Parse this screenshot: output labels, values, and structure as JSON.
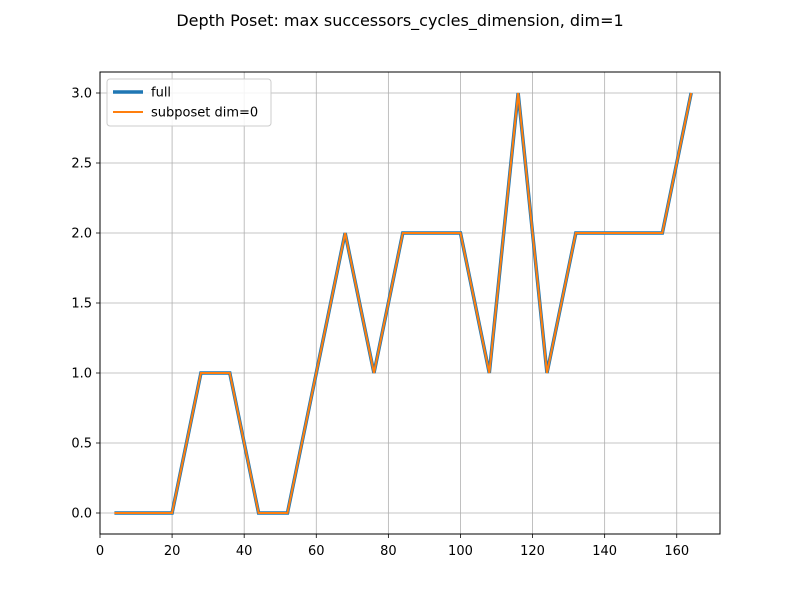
{
  "chart_data": {
    "type": "line",
    "title": "Depth Poset: max successors_cycles_dimension, dim=1",
    "xlabel": "",
    "ylabel": "",
    "xlim": [
      0,
      172
    ],
    "ylim": [
      -0.15,
      3.15
    ],
    "xticks": [
      0,
      20,
      40,
      60,
      80,
      100,
      120,
      140,
      160
    ],
    "yticks": [
      0.0,
      0.5,
      1.0,
      1.5,
      2.0,
      2.5,
      3.0
    ],
    "xtick_labels": [
      "0",
      "20",
      "40",
      "60",
      "80",
      "100",
      "120",
      "140",
      "160"
    ],
    "ytick_labels": [
      "0.0",
      "0.5",
      "1.0",
      "1.5",
      "2.0",
      "2.5",
      "3.0"
    ],
    "grid": true,
    "legend_position": "top-left",
    "x": [
      4,
      12,
      20,
      28,
      36,
      44,
      52,
      60,
      68,
      76,
      84,
      92,
      100,
      108,
      116,
      124,
      132,
      140,
      148,
      156,
      164
    ],
    "series": [
      {
        "name": "full",
        "color": "#1f77b4",
        "values": [
          0,
          0,
          0,
          1,
          1,
          0,
          0,
          1,
          2,
          1,
          2,
          2,
          2,
          1,
          3,
          1,
          2,
          2,
          2,
          2,
          3
        ]
      },
      {
        "name": "subposet dim=0",
        "color": "#ff7f0e",
        "values": [
          0,
          0,
          0,
          1,
          1,
          0,
          0,
          1,
          2,
          1,
          2,
          2,
          2,
          1,
          3,
          1,
          2,
          2,
          2,
          2,
          3
        ]
      }
    ]
  }
}
